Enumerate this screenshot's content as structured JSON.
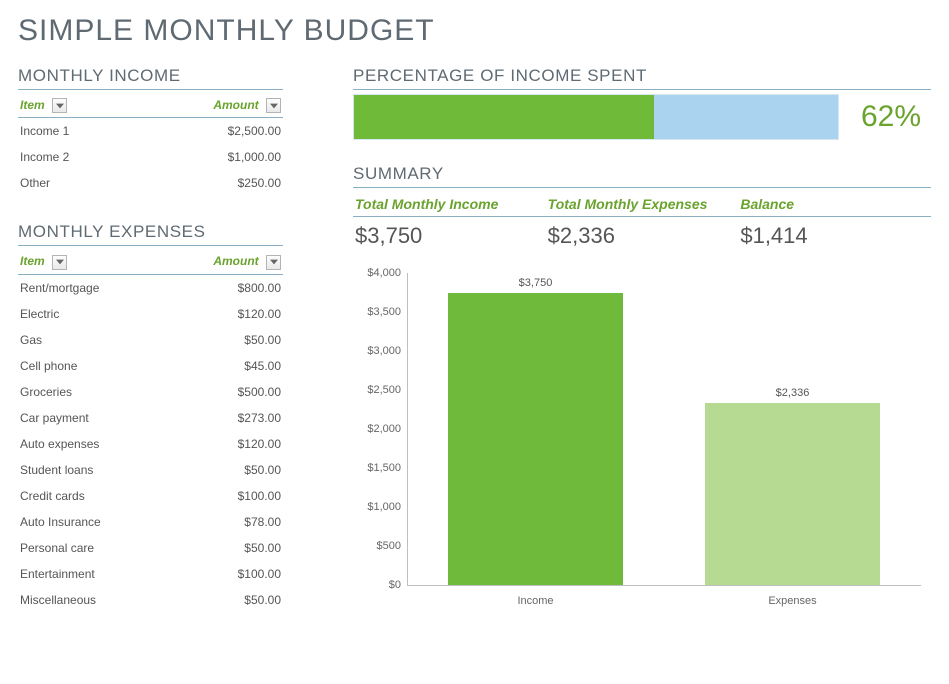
{
  "title": "SIMPLE MONTHLY BUDGET",
  "income_section": {
    "heading": "MONTHLY INCOME",
    "item_header": "Item",
    "amount_header": "Amount",
    "rows": [
      {
        "item": "Income 1",
        "amount": "$2,500.00"
      },
      {
        "item": "Income 2",
        "amount": "$1,000.00"
      },
      {
        "item": "Other",
        "amount": "$250.00"
      }
    ]
  },
  "expenses_section": {
    "heading": "MONTHLY EXPENSES",
    "item_header": "Item",
    "amount_header": "Amount",
    "rows": [
      {
        "item": "Rent/mortgage",
        "amount": "$800.00"
      },
      {
        "item": "Electric",
        "amount": "$120.00"
      },
      {
        "item": "Gas",
        "amount": "$50.00"
      },
      {
        "item": "Cell phone",
        "amount": "$45.00"
      },
      {
        "item": "Groceries",
        "amount": "$500.00"
      },
      {
        "item": "Car payment",
        "amount": "$273.00"
      },
      {
        "item": "Auto expenses",
        "amount": "$120.00"
      },
      {
        "item": "Student loans",
        "amount": "$50.00"
      },
      {
        "item": "Credit cards",
        "amount": "$100.00"
      },
      {
        "item": "Auto Insurance",
        "amount": "$78.00"
      },
      {
        "item": "Personal care",
        "amount": "$50.00"
      },
      {
        "item": "Entertainment",
        "amount": "$100.00"
      },
      {
        "item": "Miscellaneous",
        "amount": "$50.00"
      }
    ]
  },
  "percent_spent": {
    "heading": "PERCENTAGE OF INCOME SPENT",
    "percent_value": 62,
    "percent_label": "62%",
    "fill_color": "#70ba3a",
    "track_color": "#a9d3ef"
  },
  "summary": {
    "heading": "SUMMARY",
    "cols": [
      {
        "label": "Total Monthly Income",
        "value": "$3,750"
      },
      {
        "label": "Total Monthly Expenses",
        "value": "$2,336"
      },
      {
        "label": "Balance",
        "value": "$1,414"
      }
    ]
  },
  "chart": {
    "type": "bar",
    "y_max": 4000,
    "y_step": 500,
    "y_ticks": [
      "$0",
      "$500",
      "$1,000",
      "$1,500",
      "$2,000",
      "$2,500",
      "$3,000",
      "$3,500",
      "$4,000"
    ],
    "axis_color": "#bfbfbf",
    "label_color": "#666666",
    "label_fontsize": 11,
    "bars": [
      {
        "label": "Income",
        "value": 3750,
        "display": "$3,750",
        "color": "#6fba3a"
      },
      {
        "label": "Expenses",
        "value": 2336,
        "display": "$2,336",
        "color": "#b6da91"
      }
    ]
  },
  "colors": {
    "accent_green": "#6aa32e",
    "heading_gray": "#5f6a72",
    "rule_blue": "#8aaec2"
  }
}
